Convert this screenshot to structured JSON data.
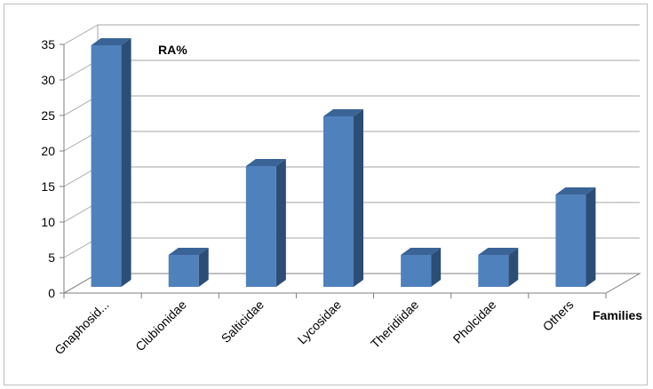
{
  "chart_data": {
    "type": "bar",
    "title": "RA%",
    "xlabel": "Families",
    "ylabel": "",
    "categories": [
      "Gnaphosid...",
      "Clubionidae",
      "Salticidae",
      "Lycosidae",
      "Theridiidae",
      "Pholcidae",
      "Others"
    ],
    "values": [
      34,
      4.5,
      17,
      24,
      4.5,
      4.5,
      13
    ],
    "ylim": [
      0,
      35
    ],
    "yticks": [
      "0",
      "5",
      "10",
      "15",
      "20",
      "25",
      "30",
      "35"
    ],
    "grid": true,
    "style": "3d-column"
  },
  "colors": {
    "bar_front": "#4f81bd",
    "bar_side": "#2c4d75",
    "bar_top": "#3a6496",
    "grid": "#a6a6a6",
    "axis": "#7f7f7f"
  }
}
